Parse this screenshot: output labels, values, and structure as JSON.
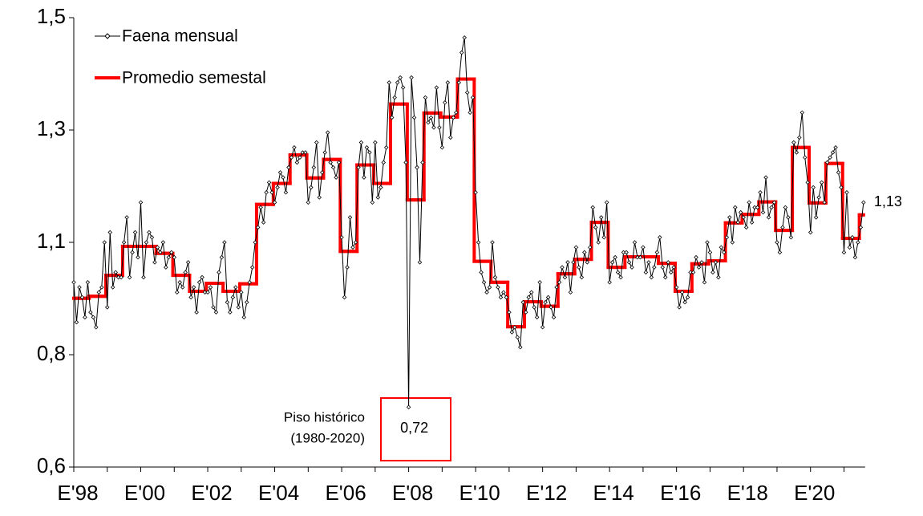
{
  "chart_data": {
    "type": "line",
    "categories": [
      "E'98",
      null,
      null,
      null,
      null,
      null,
      null,
      null,
      null,
      null,
      null,
      null,
      null,
      null,
      null,
      null,
      null,
      null,
      null,
      null,
      null,
      null,
      null,
      null,
      "E'00",
      null,
      null,
      null,
      null,
      null,
      null,
      null,
      null,
      null,
      null,
      null,
      null,
      null,
      null,
      null,
      null,
      null,
      null,
      null,
      null,
      null,
      null,
      null,
      "E'02",
      null,
      null,
      null,
      null,
      null,
      null,
      null,
      null,
      null,
      null,
      null,
      null,
      null,
      null,
      null,
      null,
      null,
      null,
      null,
      null,
      null,
      null,
      null,
      "E'04",
      null,
      null,
      null,
      null,
      null,
      null,
      null,
      null,
      null,
      null,
      null,
      null,
      null,
      null,
      null,
      null,
      null,
      null,
      null,
      null,
      null,
      null,
      null,
      "E'06",
      null,
      null,
      null,
      null,
      null,
      null,
      null,
      null,
      null,
      null,
      null,
      null,
      null,
      null,
      null,
      null,
      null,
      null,
      null,
      null,
      null,
      null,
      null,
      "E'08",
      null,
      null,
      null,
      null,
      null,
      null,
      null,
      null,
      null,
      null,
      null,
      null,
      null,
      null,
      null,
      null,
      null,
      null,
      null,
      null,
      null,
      null,
      null,
      "E'10",
      null,
      null,
      null,
      null,
      null,
      null,
      null,
      null,
      null,
      null,
      null,
      null,
      null,
      null,
      null,
      null,
      null,
      null,
      null,
      null,
      null,
      null,
      null,
      "E'12",
      null,
      null,
      null,
      null,
      null,
      null,
      null,
      null,
      null,
      null,
      null,
      null,
      null,
      null,
      null,
      null,
      null,
      null,
      null,
      null,
      null,
      null,
      null,
      "E'14",
      null,
      null,
      null,
      null,
      null,
      null,
      null,
      null,
      null,
      null,
      null,
      null,
      null,
      null,
      null,
      null,
      null,
      null,
      null,
      null,
      null,
      null,
      null,
      "E'16",
      null,
      null,
      null,
      null,
      null,
      null,
      null,
      null,
      null,
      null,
      null,
      null,
      null,
      null,
      null,
      null,
      null,
      null,
      null,
      null,
      null,
      null,
      null,
      "E'18",
      null,
      null,
      null,
      null,
      null,
      null,
      null,
      null,
      null,
      null,
      null,
      null,
      null,
      null,
      null,
      null,
      null,
      null,
      null,
      null,
      null,
      null,
      null,
      "E'20",
      null,
      null,
      null,
      null,
      null,
      null,
      null,
      null,
      null,
      null,
      null,
      null,
      null,
      null,
      null,
      null,
      null,
      null,
      null
    ],
    "series": [
      {
        "name": "Faena mensual",
        "color": "#000000",
        "style": "markers",
        "values": [
          0.97,
          0.89,
          0.96,
          0.94,
          0.9,
          0.97,
          0.91,
          0.9,
          0.88,
          0.95,
          0.96,
          1.05,
          0.92,
          1.07,
          0.96,
          0.99,
          0.98,
          0.98,
          1.05,
          1.1,
          0.98,
          1.03,
          1.07,
          1.02,
          1.13,
          0.98,
          1.05,
          1.07,
          1.06,
          1.01,
          1.04,
          1.03,
          1.05,
          1.0,
          1.02,
          1.03,
          1.02,
          0.95,
          0.97,
          0.96,
          0.99,
          1.01,
          0.94,
          0.96,
          0.91,
          0.97,
          0.98,
          0.95,
          0.95,
          0.96,
          0.92,
          0.91,
          0.99,
          1.02,
          1.05,
          0.93,
          0.91,
          0.94,
          0.96,
          0.92,
          0.95,
          0.9,
          0.93,
          0.97,
          1.0,
          1.05,
          1.08,
          1.12,
          1.09,
          1.15,
          1.17,
          1.15,
          1.13,
          1.16,
          1.19,
          1.18,
          1.15,
          1.2,
          1.22,
          1.24,
          1.21,
          1.22,
          1.23,
          1.23,
          1.13,
          1.16,
          1.2,
          1.25,
          1.14,
          1.19,
          1.23,
          1.27,
          1.21,
          1.2,
          1.18,
          1.21,
          1.06,
          0.94,
          1.0,
          1.1,
          1.04,
          1.05,
          1.2,
          1.25,
          1.18,
          1.24,
          1.23,
          1.13,
          1.25,
          1.14,
          1.16,
          1.21,
          1.24,
          1.37,
          1.3,
          1.34,
          1.37,
          1.38,
          1.36,
          1.21,
          0.72,
          1.38,
          1.3,
          1.2,
          1.01,
          1.21,
          1.34,
          1.29,
          1.3,
          1.28,
          1.36,
          1.28,
          1.24,
          1.33,
          1.37,
          1.26,
          1.3,
          1.31,
          1.37,
          1.43,
          1.46,
          1.35,
          1.31,
          1.34,
          1.15,
          1.05,
          0.99,
          0.97,
          0.95,
          0.96,
          1.05,
          0.98,
          0.96,
          0.94,
          0.95,
          0.94,
          0.91,
          0.87,
          0.88,
          0.86,
          0.84,
          0.93,
          0.91,
          0.94,
          0.95,
          0.92,
          0.9,
          0.97,
          0.88,
          0.93,
          0.94,
          0.92,
          0.9,
          0.96,
          0.97,
          1.0,
          0.98,
          1.01,
          0.95,
          1.01,
          1.04,
          1.0,
          0.98,
          1.03,
          1.01,
          1.04,
          1.12,
          1.08,
          1.05,
          1.1,
          1.06,
          1.13,
          0.97,
          1.01,
          1.02,
          0.99,
          0.98,
          1.03,
          1.03,
          1.01,
          1.0,
          1.05,
          1.02,
          1.02,
          1.04,
          0.99,
          1.01,
          0.98,
          1.0,
          1.03,
          1.06,
          1.0,
          0.98,
          1.01,
          0.99,
          1.0,
          0.96,
          0.92,
          0.95,
          0.93,
          0.94,
          0.99,
          0.99,
          1.02,
          1.0,
          1.01,
          0.97,
          1.05,
          1.03,
          0.99,
          1.01,
          0.98,
          1.04,
          1.03,
          1.06,
          1.1,
          1.05,
          1.12,
          1.09,
          1.11,
          1.1,
          1.08,
          1.13,
          1.09,
          1.12,
          1.12,
          1.15,
          1.11,
          1.18,
          1.1,
          1.12,
          1.13,
          1.05,
          1.03,
          1.08,
          1.12,
          1.1,
          1.06,
          1.25,
          1.23,
          1.26,
          1.31,
          1.22,
          1.17,
          1.07,
          1.16,
          1.1,
          1.14,
          1.17,
          1.13,
          1.21,
          1.22,
          1.23,
          1.24,
          1.19,
          1.16,
          1.03,
          1.15,
          1.04,
          1.06,
          1.02,
          1.05,
          1.08,
          1.13
        ],
        "point_labels": [
          {
            "index": 120,
            "label": "0,72"
          },
          {
            "index": 283,
            "label": "1,13"
          }
        ]
      },
      {
        "name": "Promedio semestal",
        "color": "#ff0000",
        "style": "step",
        "values": [
          0.938,
          0.938,
          0.938,
          0.938,
          0.938,
          0.938,
          0.942,
          0.942,
          0.942,
          0.942,
          0.942,
          0.942,
          0.984,
          0.984,
          0.984,
          0.984,
          0.984,
          0.984,
          1.042,
          1.042,
          1.042,
          1.042,
          1.042,
          1.042,
          1.042,
          1.042,
          1.042,
          1.042,
          1.042,
          1.042,
          1.028,
          1.028,
          1.028,
          1.028,
          1.028,
          1.028,
          0.984,
          0.984,
          0.984,
          0.984,
          0.984,
          0.984,
          0.952,
          0.952,
          0.952,
          0.952,
          0.952,
          0.952,
          0.968,
          0.968,
          0.968,
          0.968,
          0.968,
          0.968,
          0.952,
          0.952,
          0.952,
          0.952,
          0.952,
          0.952,
          0.967,
          0.967,
          0.967,
          0.967,
          0.967,
          0.967,
          1.126,
          1.126,
          1.126,
          1.126,
          1.126,
          1.126,
          1.168,
          1.168,
          1.168,
          1.168,
          1.168,
          1.168,
          1.225,
          1.225,
          1.225,
          1.225,
          1.225,
          1.225,
          1.179,
          1.179,
          1.179,
          1.179,
          1.179,
          1.179,
          1.216,
          1.216,
          1.216,
          1.216,
          1.216,
          1.216,
          1.032,
          1.032,
          1.032,
          1.032,
          1.032,
          1.032,
          1.205,
          1.205,
          1.205,
          1.205,
          1.205,
          1.205,
          1.168,
          1.168,
          1.168,
          1.168,
          1.168,
          1.168,
          1.327,
          1.327,
          1.327,
          1.327,
          1.327,
          1.327,
          1.135,
          1.135,
          1.135,
          1.135,
          1.135,
          1.135,
          1.309,
          1.309,
          1.309,
          1.309,
          1.309,
          1.309,
          1.301,
          1.301,
          1.301,
          1.301,
          1.301,
          1.301,
          1.377,
          1.377,
          1.377,
          1.377,
          1.377,
          1.377,
          1.012,
          1.012,
          1.012,
          1.012,
          1.012,
          1.012,
          0.97,
          0.97,
          0.97,
          0.97,
          0.97,
          0.97,
          0.881,
          0.881,
          0.881,
          0.881,
          0.881,
          0.881,
          0.931,
          0.931,
          0.931,
          0.931,
          0.931,
          0.931,
          0.922,
          0.922,
          0.922,
          0.922,
          0.922,
          0.922,
          0.987,
          0.987,
          0.987,
          0.987,
          0.987,
          0.987,
          1.016,
          1.016,
          1.016,
          1.016,
          1.016,
          1.016,
          1.09,
          1.09,
          1.09,
          1.09,
          1.09,
          1.09,
          1.0,
          1.0,
          1.0,
          1.0,
          1.0,
          1.0,
          1.021,
          1.021,
          1.021,
          1.021,
          1.021,
          1.021,
          1.021,
          1.021,
          1.021,
          1.021,
          1.021,
          1.021,
          1.008,
          1.008,
          1.008,
          1.008,
          1.008,
          1.008,
          0.952,
          0.952,
          0.952,
          0.952,
          0.952,
          0.952,
          1.007,
          1.007,
          1.007,
          1.007,
          1.007,
          1.007,
          1.013,
          1.013,
          1.013,
          1.013,
          1.013,
          1.013,
          1.089,
          1.089,
          1.089,
          1.089,
          1.089,
          1.089,
          1.106,
          1.106,
          1.106,
          1.106,
          1.106,
          1.106,
          1.131,
          1.131,
          1.131,
          1.131,
          1.131,
          1.131,
          1.074,
          1.074,
          1.074,
          1.074,
          1.074,
          1.074,
          1.24,
          1.24,
          1.24,
          1.24,
          1.24,
          1.24,
          1.129,
          1.129,
          1.129,
          1.129,
          1.129,
          1.129,
          1.208,
          1.208,
          1.208,
          1.208,
          1.208,
          1.208,
          1.058,
          1.058,
          1.058,
          1.058,
          1.058,
          1.058,
          1.105,
          1.105
        ]
      }
    ],
    "ylim": [
      0.6,
      1.5
    ],
    "yticks": [
      {
        "value": 0.6,
        "label": "0,6"
      },
      {
        "value": 0.825,
        "label": "0,8"
      },
      {
        "value": 1.05,
        "label": "1,1"
      },
      {
        "value": 1.275,
        "label": "1,3"
      },
      {
        "value": 1.5,
        "label": "1,5"
      }
    ],
    "annotations": [
      "Piso histórico",
      "(1980-2020)"
    ],
    "legend": "upper left",
    "grid": false
  }
}
